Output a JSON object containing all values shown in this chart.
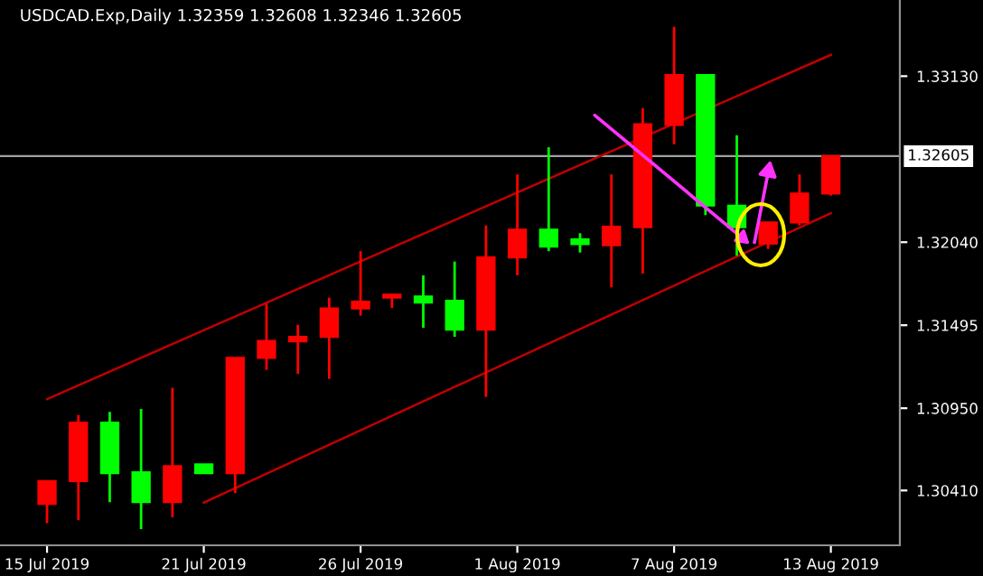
{
  "chart_data": {
    "type": "candlestick",
    "title": "USDCAD.Exp,Daily 1.32359 1.32608 1.32346 1.32605",
    "categories": [
      "15 Jul 2019",
      null,
      null,
      null,
      null,
      "21 Jul 2019",
      null,
      null,
      null,
      null,
      "26 Jul 2019",
      null,
      null,
      null,
      null,
      "1 Aug 2019",
      null,
      null,
      null,
      null,
      "7 Aug 2019",
      null,
      null,
      null,
      null,
      "13 Aug 2019"
    ],
    "ohlc": [
      [
        1.30322,
        1.30471,
        1.30195,
        1.30471
      ],
      [
        1.30471,
        1.30906,
        1.30215,
        1.30855
      ],
      [
        1.30855,
        1.30926,
        1.30333,
        1.30523
      ],
      [
        1.3053,
        1.30945,
        1.30156,
        1.30333
      ],
      [
        1.30333,
        1.31084,
        1.30234,
        1.3057
      ],
      [
        1.30582,
        1.30582,
        1.30523,
        1.30523
      ],
      [
        1.30523,
        1.31281,
        1.30393,
        1.31281
      ],
      [
        1.31281,
        1.31637,
        1.31202,
        1.31392
      ],
      [
        1.31388,
        1.31498,
        1.31175,
        1.31419
      ],
      [
        1.31419,
        1.31676,
        1.31143,
        1.31605
      ],
      [
        1.31605,
        1.31981,
        1.31558,
        1.31649
      ],
      [
        1.31676,
        1.31703,
        1.31608,
        1.31696
      ],
      [
        1.31684,
        1.31822,
        1.31478,
        1.31644
      ],
      [
        1.31656,
        1.31913,
        1.31419,
        1.31466
      ],
      [
        1.31466,
        1.3215,
        1.31024,
        1.3194
      ],
      [
        1.3194,
        1.32485,
        1.31822,
        1.32123
      ],
      [
        1.32123,
        1.32663,
        1.31981,
        1.32011
      ],
      [
        1.32059,
        1.32099,
        1.31972,
        1.32028
      ],
      [
        1.3202,
        1.32485,
        1.31744,
        1.32142
      ],
      [
        1.32138,
        1.3292,
        1.31834,
        1.32814
      ],
      [
        1.3281,
        1.33454,
        1.32683,
        1.33137
      ],
      [
        1.33137,
        1.33137,
        1.32218,
        1.3228
      ],
      [
        1.3228,
        1.32742,
        1.31952,
        1.32138
      ],
      [
        1.32031,
        1.3217,
        1.31996,
        1.3217
      ],
      [
        1.3217,
        1.32485,
        1.3215,
        1.3236
      ],
      [
        1.32359,
        1.32608,
        1.32346,
        1.32605
      ]
    ],
    "colors": [
      "#ff0000",
      "#ff0000",
      "#00ff00",
      "#00ff00",
      "#ff0000",
      "#00ff00",
      "#ff0000",
      "#ff0000",
      "#ff0000",
      "#ff0000",
      "#ff0000",
      "#ff0000",
      "#00ff00",
      "#00ff00",
      "#ff0000",
      "#ff0000",
      "#00ff00",
      "#00ff00",
      "#ff0000",
      "#ff0000",
      "#ff0000",
      "#00ff00",
      "#00ff00",
      "#ff0000",
      "#ff0000",
      "#ff0000"
    ],
    "series": [
      {
        "type": "line",
        "color": "#c00000",
        "x": [
          "15 Jul 2019",
          "13 Aug 2019"
        ],
        "values": [
          1.3101,
          1.3327
        ]
      },
      {
        "type": "line",
        "color": "#c00000",
        "x": [
          "21 Jul 2019",
          "13 Aug 2019"
        ],
        "values": [
          1.3033,
          1.3223
        ]
      }
    ],
    "ylim": [
      1.3005,
      1.3363
    ],
    "yticks": [
      {
        "value": 1.3313,
        "label": "1.33130"
      },
      {
        "value": 1.3204,
        "label": "1.32040"
      },
      1.31495,
      {
        "value": 1.3095,
        "label": "1.30950"
      },
      {
        "value": 1.3041,
        "label": "1.30410"
      }
    ],
    "ref_lines": [
      {
        "axis": "y",
        "value": 1.32605,
        "label": "1.32605",
        "color": "#a0a0a0"
      }
    ],
    "grid": false
  }
}
